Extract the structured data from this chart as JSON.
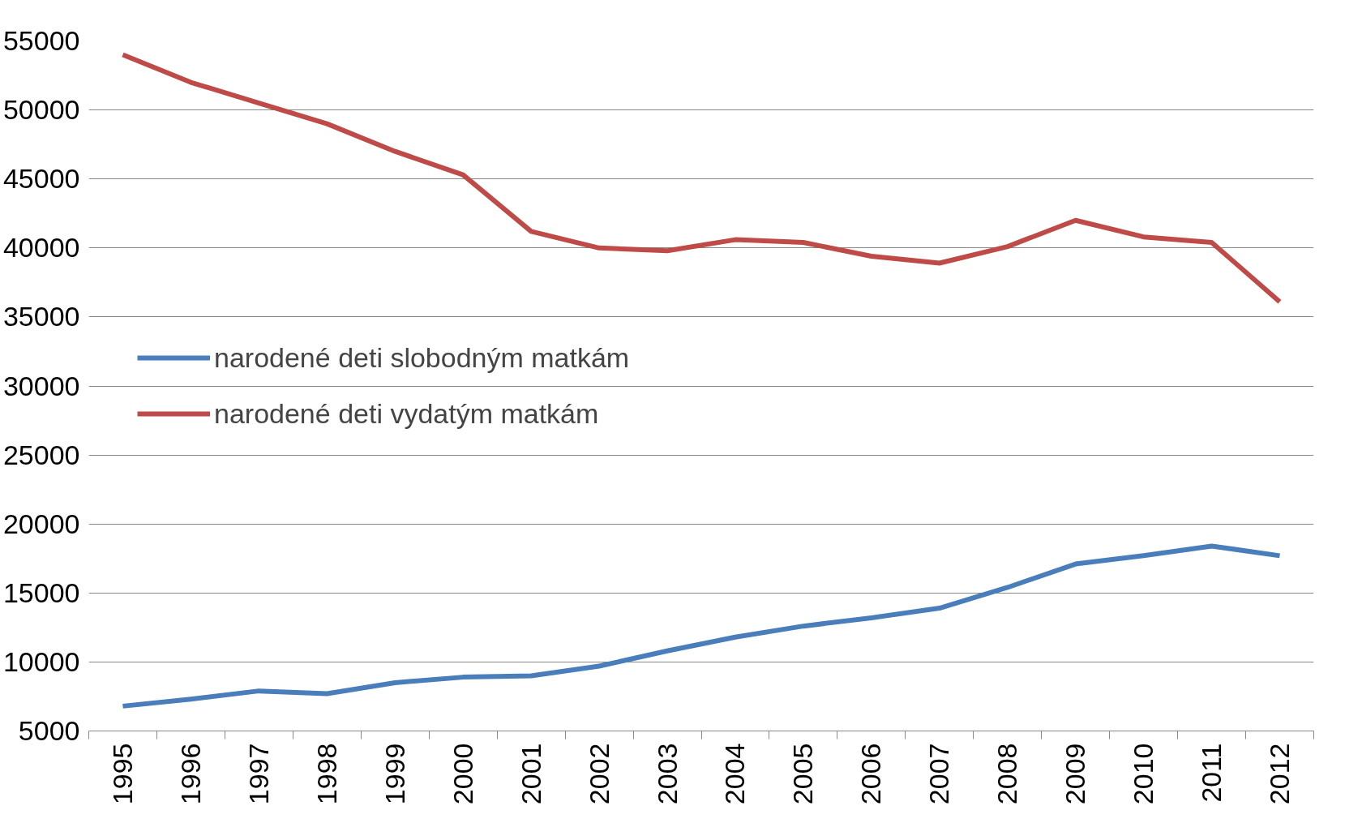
{
  "chart_data": {
    "type": "line",
    "categories": [
      "1995",
      "1996",
      "1997",
      "1998",
      "1999",
      "2000",
      "2001",
      "2002",
      "2003",
      "2004",
      "2005",
      "2006",
      "2007",
      "2008",
      "2009",
      "2010",
      "2011",
      "2012"
    ],
    "series": [
      {
        "name": "narodené deti slobodným matkám",
        "color": "#4a7ebb",
        "values": [
          6800,
          7300,
          7900,
          7700,
          8500,
          8900,
          9000,
          9700,
          10800,
          11800,
          12600,
          13200,
          13900,
          15400,
          17100,
          17700,
          18400,
          17700
        ]
      },
      {
        "name": "narodené deti vydatým matkám",
        "color": "#be4b48",
        "values": [
          54000,
          52000,
          50500,
          49000,
          47000,
          45300,
          41200,
          40000,
          39800,
          40600,
          40400,
          39400,
          38900,
          40100,
          42000,
          40800,
          40400,
          36100
        ]
      }
    ],
    "ylim": [
      5000,
      55000
    ],
    "yticks": [
      5000,
      10000,
      15000,
      20000,
      25000,
      30000,
      35000,
      40000,
      45000,
      50000,
      55000
    ],
    "grid": "y",
    "legend": "left",
    "marker": "none",
    "line_style": "solid"
  }
}
